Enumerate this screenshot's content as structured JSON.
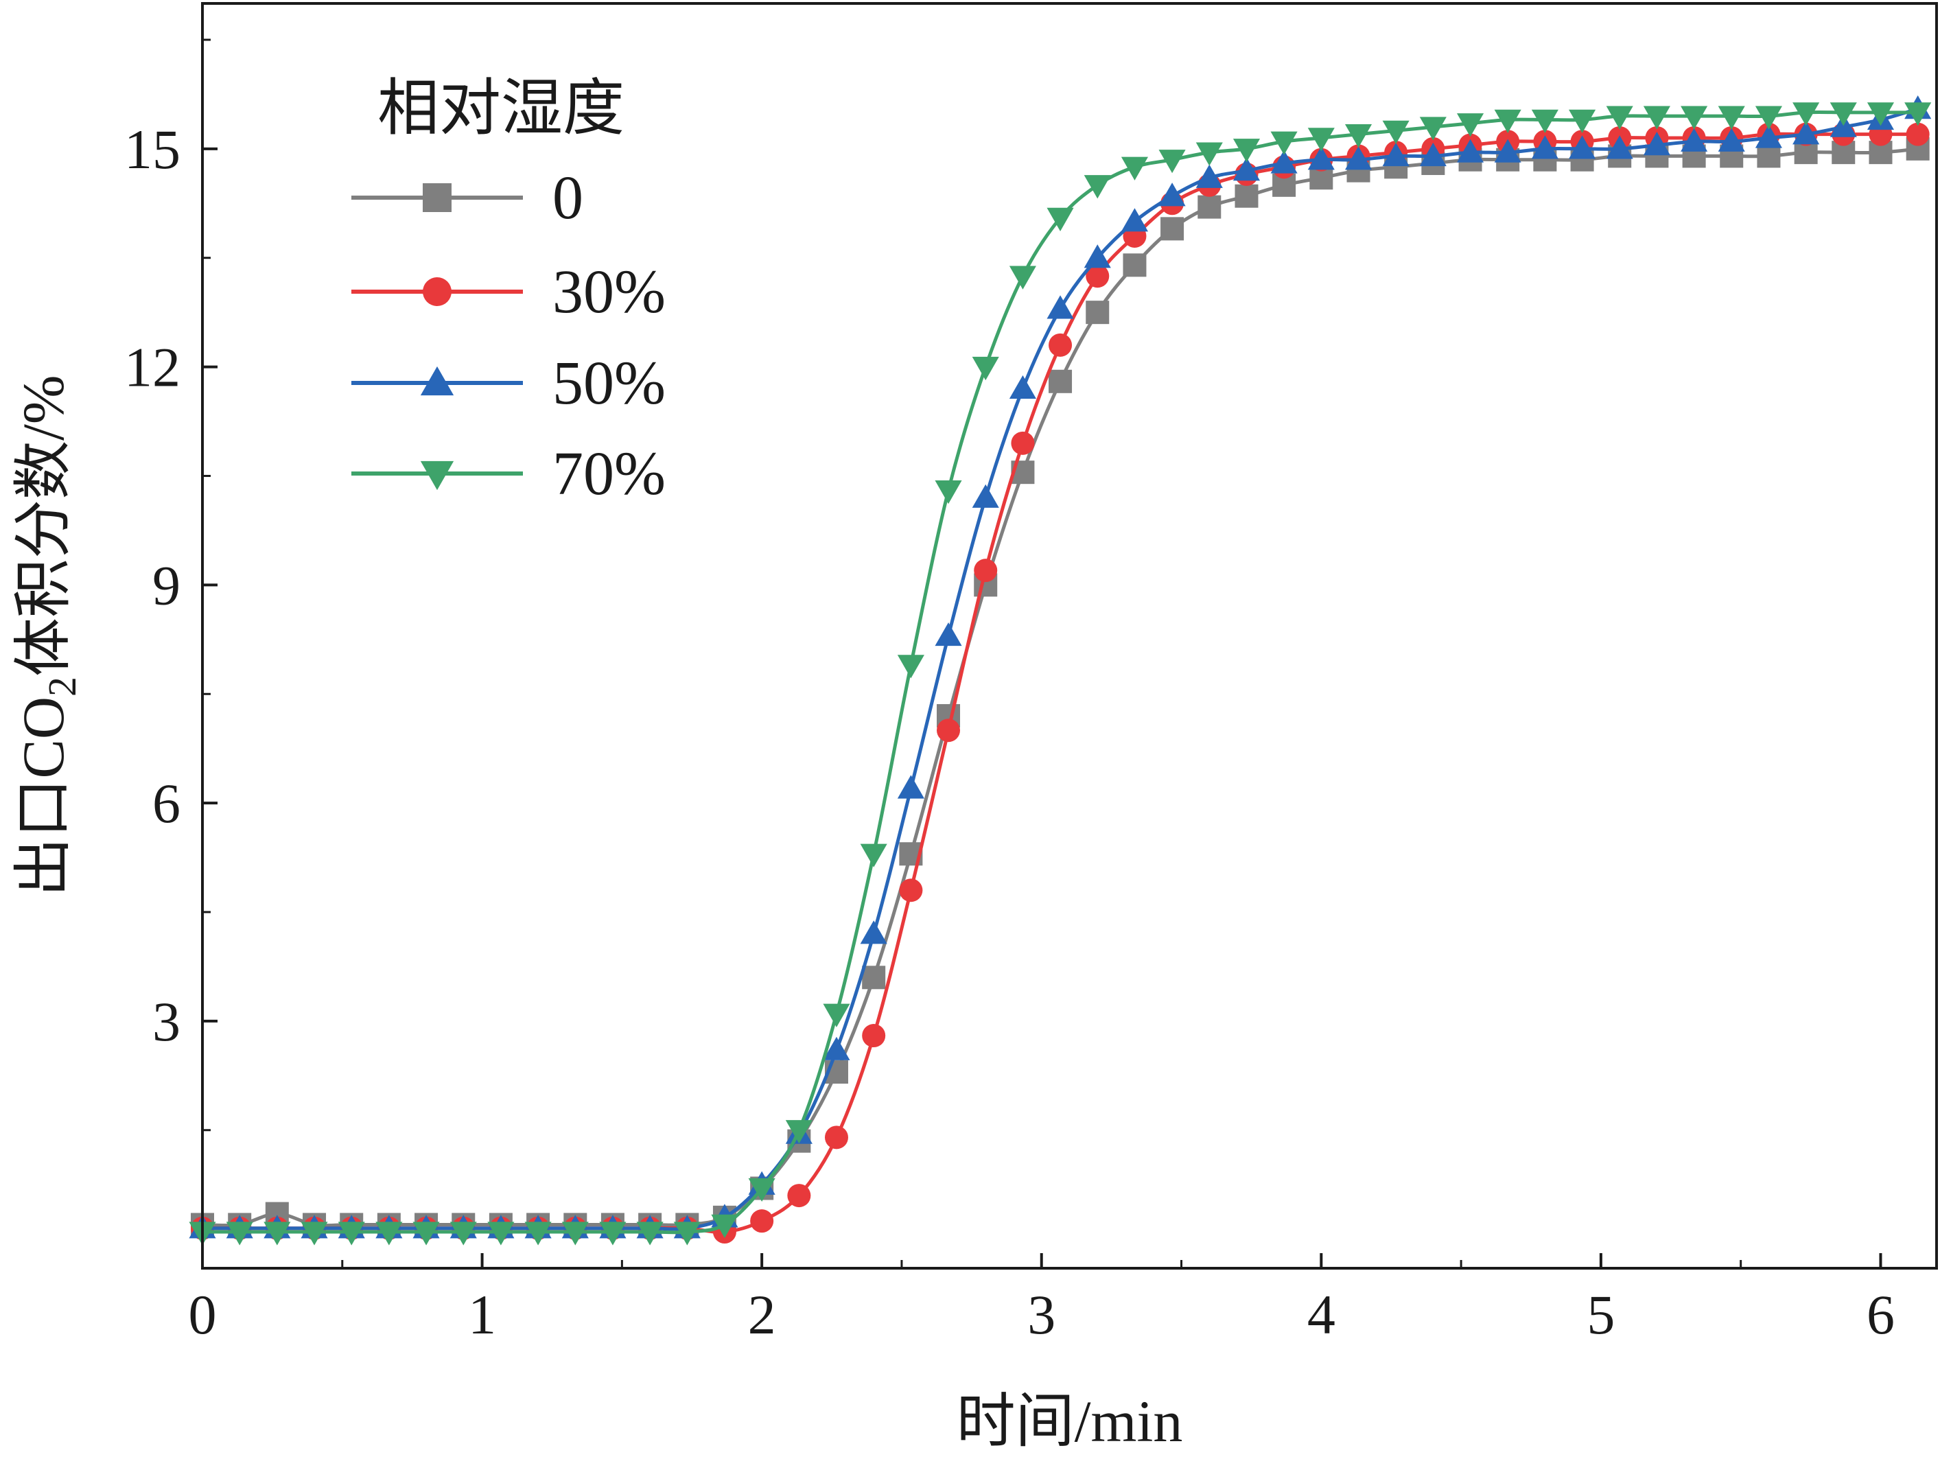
{
  "chart_data": {
    "type": "line",
    "title": "",
    "xlabel": "时间/min",
    "ylabel_parts": {
      "before": "出口CO",
      "subscript": "2",
      "after": "体积分数/%"
    },
    "xlim": [
      0,
      6.2
    ],
    "ylim": [
      -0.4,
      17
    ],
    "x_ticks": [
      0,
      1,
      2,
      3,
      4,
      5,
      6
    ],
    "x_tick_labels": [
      "0",
      "1",
      "2",
      "3",
      "4",
      "5",
      "6"
    ],
    "y_ticks": [
      3,
      6,
      9,
      12,
      15
    ],
    "y_tick_labels": [
      "3",
      "6",
      "9",
      "12",
      "15"
    ],
    "grid": false,
    "legend": {
      "title": "相对湿度",
      "placement": "top-left"
    },
    "x": [
      0,
      0.133,
      0.267,
      0.4,
      0.533,
      0.667,
      0.8,
      0.933,
      1.067,
      1.2,
      1.333,
      1.467,
      1.6,
      1.733,
      1.867,
      2.0,
      2.133,
      2.267,
      2.4,
      2.533,
      2.667,
      2.8,
      2.933,
      3.067,
      3.2,
      3.333,
      3.467,
      3.6,
      3.733,
      3.867,
      4.0,
      4.133,
      4.267,
      4.4,
      4.533,
      4.667,
      4.8,
      4.933,
      5.067,
      5.2,
      5.333,
      5.467,
      5.6,
      5.733,
      5.867,
      6.0,
      6.133
    ],
    "series": [
      {
        "name": "0",
        "color": "#7f7f7f",
        "marker": "square",
        "values": [
          0.2,
          0.2,
          0.35,
          0.2,
          0.2,
          0.2,
          0.2,
          0.2,
          0.2,
          0.2,
          0.2,
          0.2,
          0.2,
          0.2,
          0.3,
          0.7,
          1.35,
          2.3,
          3.6,
          5.3,
          7.2,
          9.0,
          10.55,
          11.8,
          12.75,
          13.4,
          13.9,
          14.2,
          14.35,
          14.5,
          14.6,
          14.7,
          14.75,
          14.8,
          14.85,
          14.85,
          14.85,
          14.85,
          14.9,
          14.9,
          14.9,
          14.9,
          14.9,
          14.95,
          14.95,
          14.95,
          15.0
        ]
      },
      {
        "name": "30%",
        "color": "#e8393b",
        "marker": "circle",
        "values": [
          0.15,
          0.15,
          0.15,
          0.15,
          0.15,
          0.15,
          0.15,
          0.15,
          0.15,
          0.15,
          0.15,
          0.15,
          0.15,
          0.15,
          0.1,
          0.25,
          0.6,
          1.4,
          2.8,
          4.8,
          7.0,
          9.2,
          10.95,
          12.3,
          13.25,
          13.8,
          14.25,
          14.5,
          14.65,
          14.75,
          14.85,
          14.9,
          14.95,
          15.0,
          15.05,
          15.1,
          15.1,
          15.1,
          15.15,
          15.15,
          15.15,
          15.15,
          15.2,
          15.2,
          15.2,
          15.2,
          15.2
        ]
      },
      {
        "name": "50%",
        "color": "#2866b8",
        "marker": "triangle-up",
        "values": [
          0.15,
          0.15,
          0.15,
          0.15,
          0.15,
          0.15,
          0.15,
          0.15,
          0.15,
          0.15,
          0.15,
          0.15,
          0.15,
          0.15,
          0.3,
          0.75,
          1.45,
          2.6,
          4.2,
          6.2,
          8.3,
          10.2,
          11.7,
          12.8,
          13.5,
          14.0,
          14.35,
          14.6,
          14.7,
          14.8,
          14.85,
          14.85,
          14.9,
          14.9,
          14.95,
          14.95,
          15.0,
          15.0,
          15.0,
          15.05,
          15.1,
          15.1,
          15.15,
          15.2,
          15.3,
          15.4,
          15.55
        ]
      },
      {
        "name": "70%",
        "color": "#3ea36a",
        "marker": "triangle-down",
        "values": [
          0.1,
          0.1,
          0.1,
          0.1,
          0.1,
          0.1,
          0.1,
          0.1,
          0.1,
          0.1,
          0.1,
          0.1,
          0.1,
          0.1,
          0.2,
          0.7,
          1.5,
          3.1,
          5.3,
          7.9,
          10.3,
          12.0,
          13.25,
          14.05,
          14.5,
          14.75,
          14.85,
          14.95,
          15.0,
          15.1,
          15.15,
          15.2,
          15.25,
          15.3,
          15.35,
          15.4,
          15.4,
          15.4,
          15.45,
          15.45,
          15.45,
          15.45,
          15.45,
          15.5,
          15.5,
          15.5,
          15.5
        ]
      }
    ]
  }
}
